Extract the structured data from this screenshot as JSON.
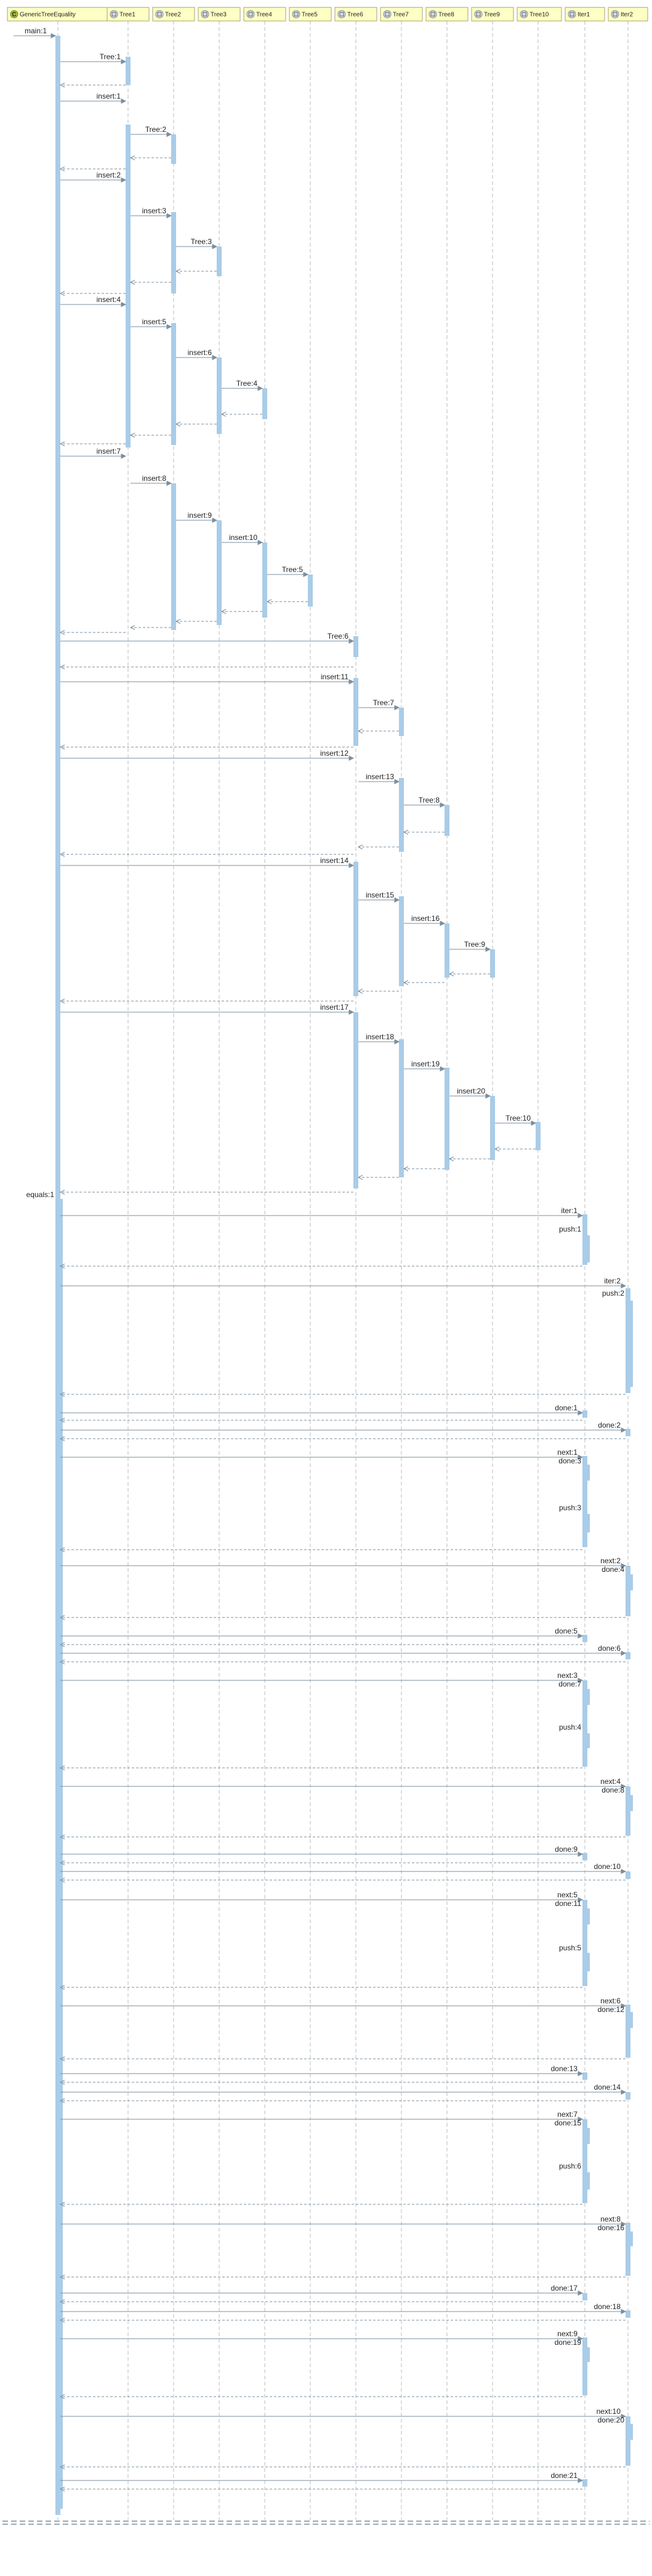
{
  "diagram": {
    "participants": [
      {
        "id": "p0",
        "label": "GenericTreeEquality",
        "kind": "class"
      },
      {
        "id": "p1",
        "label": "Tree1",
        "kind": "object"
      },
      {
        "id": "p2",
        "label": "Tree2",
        "kind": "object"
      },
      {
        "id": "p3",
        "label": "Tree3",
        "kind": "object"
      },
      {
        "id": "p4",
        "label": "Tree4",
        "kind": "object"
      },
      {
        "id": "p5",
        "label": "Tree5",
        "kind": "object"
      },
      {
        "id": "p6",
        "label": "Tree6",
        "kind": "object"
      },
      {
        "id": "p7",
        "label": "Tree7",
        "kind": "object"
      },
      {
        "id": "p8",
        "label": "Tree8",
        "kind": "object"
      },
      {
        "id": "p9",
        "label": "Tree9",
        "kind": "object"
      },
      {
        "id": "p10",
        "label": "Tree10",
        "kind": "object"
      },
      {
        "id": "p11",
        "label": "Iter1",
        "kind": "object"
      },
      {
        "id": "p12",
        "label": "Iter2",
        "kind": "object"
      }
    ],
    "messages": [
      {
        "label": "main:1"
      },
      {
        "label": "Tree:1"
      },
      {
        "label": "insert:1"
      },
      {
        "label": "Tree:2"
      },
      {
        "label": "insert:2"
      },
      {
        "label": "insert:3"
      },
      {
        "label": "Tree:3"
      },
      {
        "label": "insert:4"
      },
      {
        "label": "insert:5"
      },
      {
        "label": "insert:6"
      },
      {
        "label": "Tree:4"
      },
      {
        "label": "insert:7"
      },
      {
        "label": "insert:8"
      },
      {
        "label": "insert:9"
      },
      {
        "label": "insert:10"
      },
      {
        "label": "Tree:5"
      },
      {
        "label": "Tree:6"
      },
      {
        "label": "insert:11"
      },
      {
        "label": "Tree:7"
      },
      {
        "label": "insert:12"
      },
      {
        "label": "insert:13"
      },
      {
        "label": "Tree:8"
      },
      {
        "label": "insert:14"
      },
      {
        "label": "insert:15"
      },
      {
        "label": "insert:16"
      },
      {
        "label": "Tree:9"
      },
      {
        "label": "insert:17"
      },
      {
        "label": "insert:18"
      },
      {
        "label": "insert:19"
      },
      {
        "label": "insert:20"
      },
      {
        "label": "Tree:10"
      },
      {
        "label": "equals:1"
      },
      {
        "label": "iter:1"
      },
      {
        "label": "push:1"
      },
      {
        "label": "iter:2"
      },
      {
        "label": "push:2"
      },
      {
        "label": "done:1"
      },
      {
        "label": "done:2"
      },
      {
        "label": "next:1"
      },
      {
        "label": "done:3"
      },
      {
        "label": "push:3"
      },
      {
        "label": "next:2"
      },
      {
        "label": "done:4"
      },
      {
        "label": "done:5"
      },
      {
        "label": "done:6"
      },
      {
        "label": "next:3"
      },
      {
        "label": "done:7"
      },
      {
        "label": "push:4"
      },
      {
        "label": "next:4"
      },
      {
        "label": "done:8"
      },
      {
        "label": "done:9"
      },
      {
        "label": "done:10"
      },
      {
        "label": "next:5"
      },
      {
        "label": "done:11"
      },
      {
        "label": "push:5"
      },
      {
        "label": "next:6"
      },
      {
        "label": "done:12"
      },
      {
        "label": "done:13"
      },
      {
        "label": "done:14"
      },
      {
        "label": "next:7"
      },
      {
        "label": "done:15"
      },
      {
        "label": "push:6"
      },
      {
        "label": "next:8"
      },
      {
        "label": "done:16"
      },
      {
        "label": "done:17"
      },
      {
        "label": "done:18"
      },
      {
        "label": "next:9"
      },
      {
        "label": "done:19"
      },
      {
        "label": "next:10"
      },
      {
        "label": "done:20"
      },
      {
        "label": "done:21"
      }
    ]
  },
  "colors": {
    "header_fill": "#feffc4",
    "header_border": "#a8a36a",
    "activation": "#a9cce8",
    "lifeline": "#bbbbbb",
    "arrow": "#7a8f9f",
    "text": "#222222",
    "icon_class": "#a1c13a",
    "icon_object": "#d9dde2"
  }
}
